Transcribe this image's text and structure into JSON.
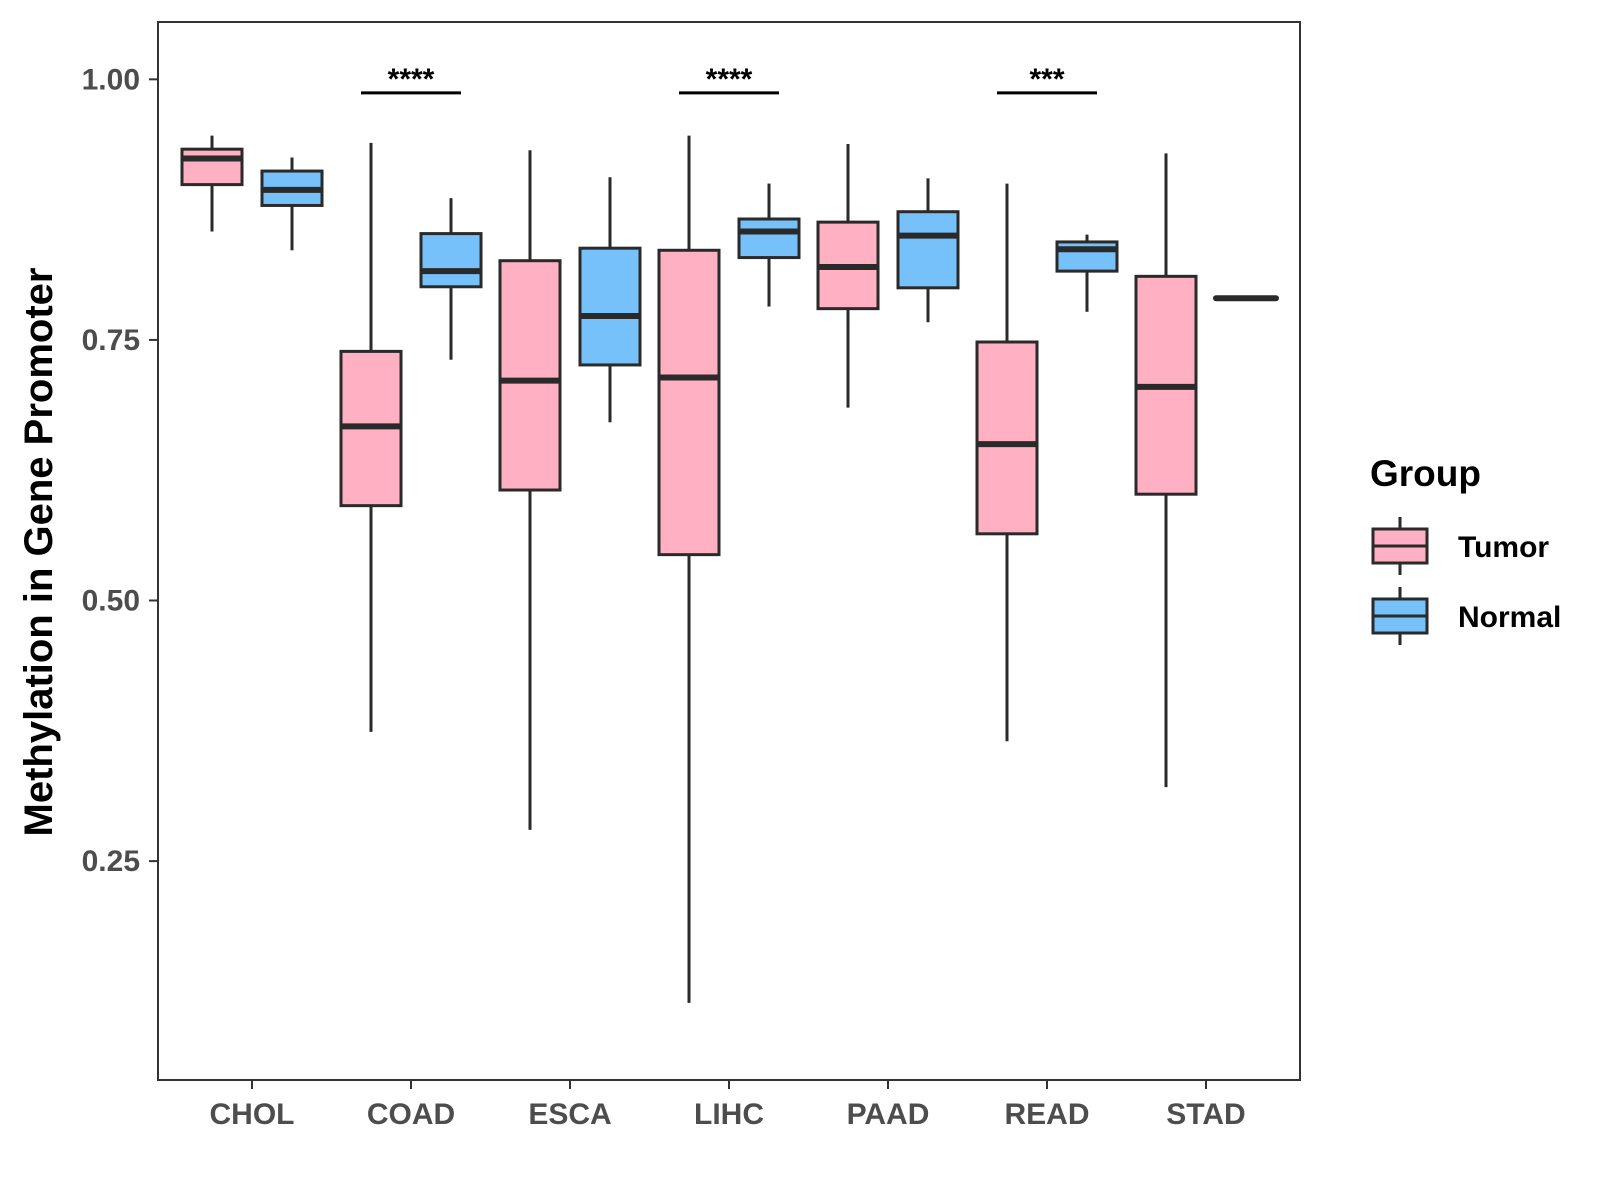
{
  "chart_data": {
    "type": "boxplot",
    "title": "",
    "xlabel": "",
    "ylabel": "Methylation in Gene Promoter",
    "ylim": [
      0.04,
      1.055
    ],
    "yticks": [
      0.25,
      0.5,
      0.75,
      1.0
    ],
    "ytick_labels": [
      "0.25",
      "0.50",
      "0.75",
      "1.00"
    ],
    "grid": false,
    "categories": [
      "CHOL",
      "COAD",
      "ESCA",
      "LIHC",
      "PAAD",
      "READ",
      "STAD"
    ],
    "legend": {
      "title": "Group",
      "position": "right",
      "entries": [
        {
          "name": "Tumor",
          "color": "#FFB0C3"
        },
        {
          "name": "Normal",
          "color": "#76C1FA"
        }
      ]
    },
    "series": [
      {
        "name": "Tumor",
        "color": "#FFB0C3",
        "boxes": [
          {
            "category": "CHOL",
            "min": 0.854,
            "q1": 0.899,
            "median": 0.924,
            "q3": 0.933,
            "max": 0.946
          },
          {
            "category": "COAD",
            "min": 0.374,
            "q1": 0.591,
            "median": 0.667,
            "q3": 0.739,
            "max": 0.939
          },
          {
            "category": "ESCA",
            "min": 0.28,
            "q1": 0.606,
            "median": 0.711,
            "q3": 0.826,
            "max": 0.932
          },
          {
            "category": "LIHC",
            "min": 0.114,
            "q1": 0.544,
            "median": 0.714,
            "q3": 0.836,
            "max": 0.946
          },
          {
            "category": "PAAD",
            "min": 0.685,
            "q1": 0.78,
            "median": 0.82,
            "q3": 0.863,
            "max": 0.938
          },
          {
            "category": "READ",
            "min": 0.365,
            "q1": 0.564,
            "median": 0.65,
            "q3": 0.748,
            "max": 0.9
          },
          {
            "category": "STAD",
            "min": 0.321,
            "q1": 0.602,
            "median": 0.705,
            "q3": 0.811,
            "max": 0.929
          }
        ]
      },
      {
        "name": "Normal",
        "color": "#76C1FA",
        "boxes": [
          {
            "category": "CHOL",
            "min": 0.836,
            "q1": 0.879,
            "median": 0.894,
            "q3": 0.912,
            "max": 0.925
          },
          {
            "category": "COAD",
            "min": 0.731,
            "q1": 0.801,
            "median": 0.816,
            "q3": 0.852,
            "max": 0.886
          },
          {
            "category": "ESCA",
            "min": 0.671,
            "q1": 0.726,
            "median": 0.773,
            "q3": 0.838,
            "max": 0.906
          },
          {
            "category": "LIHC",
            "min": 0.782,
            "q1": 0.829,
            "median": 0.854,
            "q3": 0.866,
            "max": 0.9
          },
          {
            "category": "PAAD",
            "min": 0.767,
            "q1": 0.8,
            "median": 0.85,
            "q3": 0.873,
            "max": 0.905
          },
          {
            "category": "READ",
            "min": 0.777,
            "q1": 0.816,
            "median": 0.837,
            "q3": 0.844,
            "max": 0.851
          },
          {
            "category": "STAD",
            "min": 0.79,
            "q1": 0.79,
            "median": 0.79,
            "q3": 0.79,
            "max": 0.79
          }
        ]
      }
    ],
    "annotations": [
      {
        "category": "COAD",
        "text": "****",
        "y": 0.987
      },
      {
        "category": "LIHC",
        "text": "****",
        "y": 0.987
      },
      {
        "category": "READ",
        "text": "***",
        "y": 0.987
      }
    ]
  }
}
